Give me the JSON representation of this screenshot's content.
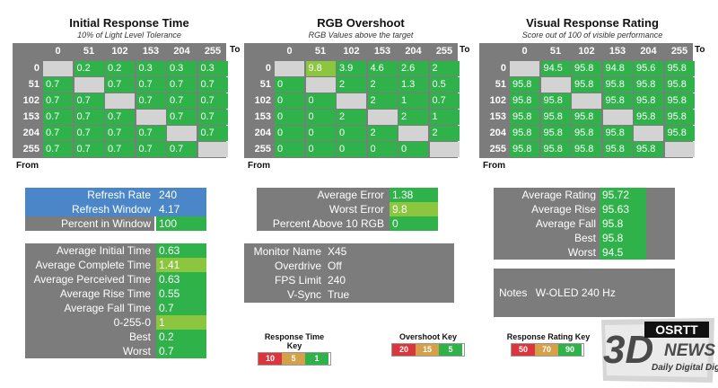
{
  "colors": {
    "green": "#2fb24a",
    "lime": "#8cc63f",
    "blue": "#4a86c8",
    "grey": "#7c7c7c",
    "diag": "#d3d3d3",
    "red": "#d9363e",
    "gold": "#d4a04a"
  },
  "chart_data": [
    {
      "type": "table",
      "title": "Initial Response Time",
      "subtitle": "10% of Light Level Tolerance",
      "to_label": "To",
      "from_label": "From",
      "columns": [
        "0",
        "51",
        "102",
        "153",
        "204",
        "255"
      ],
      "rows": [
        "0",
        "51",
        "102",
        "153",
        "204",
        "255"
      ],
      "cells": [
        [
          "",
          "0.2",
          "0.2",
          "0.3",
          "0.3",
          "0.3"
        ],
        [
          "0.7",
          "",
          "0.7",
          "0.7",
          "0.7",
          "0.7"
        ],
        [
          "0.7",
          "0.7",
          "",
          "0.7",
          "0.7",
          "0.7"
        ],
        [
          "0.7",
          "0.7",
          "0.7",
          "",
          "0.7",
          "0.7"
        ],
        [
          "0.7",
          "0.7",
          "0.7",
          "0.7",
          "",
          "0.7"
        ],
        [
          "0.7",
          "0.7",
          "0.7",
          "0.7",
          "0.7",
          ""
        ]
      ]
    },
    {
      "type": "table",
      "title": "RGB Overshoot",
      "subtitle": "RGB Values above the target",
      "to_label": "To",
      "from_label": "From",
      "columns": [
        "0",
        "51",
        "102",
        "153",
        "204",
        "255"
      ],
      "rows": [
        "0",
        "51",
        "102",
        "153",
        "204",
        "255"
      ],
      "cells": [
        [
          "",
          "9.8",
          "3.9",
          "4.6",
          "2.6",
          "2"
        ],
        [
          "0",
          "",
          "2",
          "2",
          "1.3",
          "0.5"
        ],
        [
          "0",
          "0",
          "",
          "2",
          "1",
          "0.7"
        ],
        [
          "0",
          "0",
          "2",
          "",
          "2",
          "1"
        ],
        [
          "0",
          "0",
          "0",
          "2",
          "",
          "2"
        ],
        [
          "0",
          "0",
          "0",
          "0",
          "0",
          ""
        ]
      ]
    },
    {
      "type": "table",
      "title": "Visual Response Rating",
      "subtitle": "Score out of 100 of visible performance",
      "to_label": "To",
      "from_label": "From",
      "columns": [
        "0",
        "51",
        "102",
        "153",
        "204",
        "255"
      ],
      "rows": [
        "0",
        "51",
        "102",
        "153",
        "204",
        "255"
      ],
      "cells": [
        [
          "",
          "94.5",
          "95.8",
          "94.8",
          "95.6",
          "95.8"
        ],
        [
          "95.8",
          "",
          "95.8",
          "95.8",
          "95.8",
          "95.8"
        ],
        [
          "95.8",
          "95.8",
          "",
          "95.8",
          "95.8",
          "95.8"
        ],
        [
          "95.8",
          "95.8",
          "95.8",
          "",
          "95.8",
          "95.8"
        ],
        [
          "95.8",
          "95.8",
          "95.8",
          "95.8",
          "",
          "95.8"
        ],
        [
          "95.8",
          "95.8",
          "95.8",
          "95.8",
          "95.8",
          ""
        ]
      ]
    }
  ],
  "refresh": {
    "rows": [
      {
        "label": "Refresh Rate",
        "value": "240"
      },
      {
        "label": "Refresh Window",
        "value": "4.17"
      },
      {
        "label": "Percent in Window",
        "value": "100"
      }
    ]
  },
  "times": {
    "rows": [
      {
        "label": "Average Initial Time",
        "value": "0.63"
      },
      {
        "label": "Average Complete Time",
        "value": "1.41"
      },
      {
        "label": "Average Perceived Time",
        "value": "0.63"
      },
      {
        "label": "Average Rise Time",
        "value": "0.55"
      },
      {
        "label": "Average Fall Time",
        "value": "0.7"
      },
      {
        "label": "0-255-0",
        "value": "1"
      },
      {
        "label": "Best",
        "value": "0.2"
      },
      {
        "label": "Worst",
        "value": "0.7"
      }
    ]
  },
  "errors": {
    "rows": [
      {
        "label": "Average Error",
        "value": "1.38"
      },
      {
        "label": "Worst Error",
        "value": "9.8"
      },
      {
        "label": "Percent Above 10 RGB",
        "value": "0"
      }
    ]
  },
  "monitor": {
    "rows": [
      {
        "label": "Monitor Name",
        "value": "X45"
      },
      {
        "label": "Overdrive",
        "value": "Off"
      },
      {
        "label": "FPS Limit",
        "value": "240"
      },
      {
        "label": "V-Sync",
        "value": "True"
      }
    ]
  },
  "ratings": {
    "rows": [
      {
        "label": "Average Rating",
        "value": "95.72"
      },
      {
        "label": "Average Rise",
        "value": "95.63"
      },
      {
        "label": "Average Fall",
        "value": "95.8"
      },
      {
        "label": "Best",
        "value": "95.8"
      },
      {
        "label": "Worst",
        "value": "94.5"
      }
    ]
  },
  "notes": {
    "label": "Notes",
    "value": "W-OLED 240 Hz"
  },
  "keys": [
    {
      "title": "Response Time Key",
      "values": [
        "10",
        "5",
        "1"
      ]
    },
    {
      "title": "Overshoot Key",
      "values": [
        "20",
        "15",
        "5"
      ]
    },
    {
      "title": "Response Rating Key",
      "values": [
        "50",
        "70",
        "90"
      ]
    }
  ],
  "logo": {
    "brand": "3D",
    "badge": "OSRTT",
    "news": "NEWS",
    "tagline": "Daily Digital Digest"
  }
}
